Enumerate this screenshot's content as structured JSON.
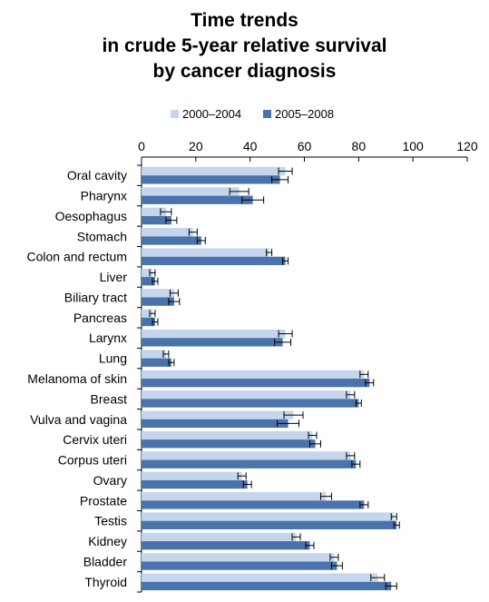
{
  "chart_data": {
    "type": "bar",
    "orientation": "horizontal",
    "title_lines": [
      "Time trends",
      "in crude 5-year relative survival",
      "by cancer diagnosis"
    ],
    "xlim": [
      0,
      120
    ],
    "xticks": [
      0,
      20,
      40,
      60,
      80,
      100,
      120
    ],
    "grid": false,
    "legend_position": "top",
    "error_bars": true,
    "categories": [
      "Oral cavity",
      "Pharynx",
      "Oesophagus",
      "Stomach",
      "Colon and rectum",
      "Liver",
      "Biliary tract",
      "Pancreas",
      "Larynx",
      "Lung",
      "Melanoma of skin",
      "Breast",
      "Vulva and vagina",
      "Cervix uteri",
      "Corpus uteri",
      "Ovary",
      "Prostate",
      "Testis",
      "Kidney",
      "Bladder",
      "Thyroid"
    ],
    "series": [
      {
        "name": "2000–2004",
        "color": "#c5d6ec",
        "values": [
          53,
          36,
          9,
          19,
          47,
          4,
          12,
          4,
          53,
          9,
          82,
          77,
          56,
          63,
          77,
          37,
          68,
          93,
          57,
          71,
          87
        ],
        "error": [
          2.5,
          3.5,
          2,
          1.5,
          1,
          1,
          1.5,
          1,
          2.5,
          1,
          1.5,
          1.5,
          3.5,
          1.5,
          1.5,
          1.5,
          2,
          1,
          1.5,
          1.5,
          2.5
        ]
      },
      {
        "name": "2005–2008",
        "color": "#4a72ab",
        "values": [
          51,
          41,
          11,
          22,
          53,
          5,
          12,
          5,
          52,
          11,
          84,
          80,
          54,
          64,
          79,
          39,
          82,
          94,
          62,
          72,
          92
        ],
        "error": [
          3,
          4,
          2,
          1.5,
          1,
          1,
          2,
          1,
          3,
          1,
          1.5,
          1,
          4,
          2,
          1.5,
          1.5,
          1.5,
          1,
          1.5,
          2,
          2
        ]
      }
    ]
  }
}
